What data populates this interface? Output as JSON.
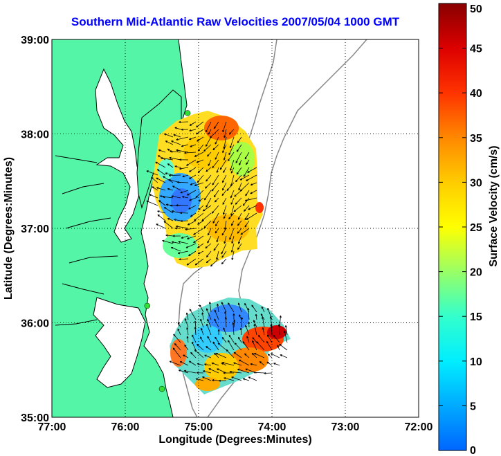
{
  "map": {
    "title": "Southern Mid-Atlantic Raw Velocities 2007/05/04 1000 GMT",
    "xlabel": "Longitude (Degrees:Minutes)",
    "ylabel": "Latitude (Degrees:Minutes)",
    "x_ticks": [
      {
        "value": -77,
        "label": "77:00"
      },
      {
        "value": -76,
        "label": "76:00"
      },
      {
        "value": -75,
        "label": "75:00"
      },
      {
        "value": -74,
        "label": "74:00"
      },
      {
        "value": -73,
        "label": "73:00"
      },
      {
        "value": -72,
        "label": "72:00"
      }
    ],
    "y_ticks": [
      {
        "value": 39,
        "label": "39:00"
      },
      {
        "value": 38,
        "label": "38:00"
      },
      {
        "value": 37,
        "label": "37:00"
      },
      {
        "value": 36,
        "label": "36:00"
      },
      {
        "value": 35,
        "label": "35:00"
      }
    ],
    "xlim": [
      -77,
      -72
    ],
    "ylim": [
      35,
      39
    ],
    "grid": true,
    "land_color": "#55f5a8",
    "coast_color": "#000000",
    "isobath_color": "#888888",
    "station_color": "#33dd33",
    "stations": [
      {
        "lon": -75.15,
        "lat": 38.22
      },
      {
        "lon": -75.7,
        "lat": 36.18
      },
      {
        "lon": -75.5,
        "lat": 35.3
      }
    ]
  },
  "colorbar": {
    "label": "Surface Velocity (cm/s)",
    "min": 0,
    "max": 50,
    "ticks": [
      "0",
      "5",
      "10",
      "15",
      "20",
      "25",
      "30",
      "35",
      "40",
      "45",
      "50"
    ],
    "colors": [
      "#0066ff",
      "#00aaff",
      "#00eeff",
      "#33ffcc",
      "#99ff66",
      "#ffff00",
      "#ffcc00",
      "#ff8800",
      "#ff3300",
      "#dd0000",
      "#880000"
    ]
  }
}
